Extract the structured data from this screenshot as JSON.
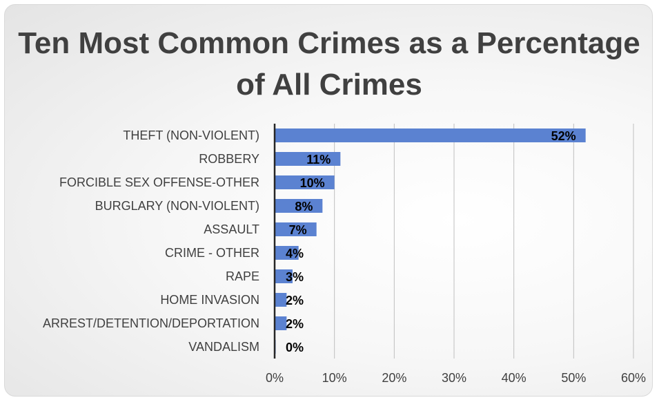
{
  "chart_data": {
    "type": "bar",
    "orientation": "horizontal",
    "title": "Ten Most Common Crimes as a Percentage of All Crimes",
    "categories": [
      "THEFT (NON-VIOLENT)",
      "ROBBERY",
      "FORCIBLE SEX OFFENSE-OTHER",
      "BURGLARY (NON-VIOLENT)",
      "ASSAULT",
      "CRIME - OTHER",
      "RAPE",
      "HOME INVASION",
      "ARREST/DETENTION/DEPORTATION",
      "VANDALISM"
    ],
    "values": [
      52,
      11,
      10,
      8,
      7,
      4,
      3,
      2,
      2,
      0
    ],
    "data_labels": [
      "52%",
      "11%",
      "10%",
      "8%",
      "7%",
      "4%",
      "3%",
      "2%",
      "2%",
      "0%"
    ],
    "xlim": [
      0,
      60
    ],
    "xticks": [
      0,
      10,
      20,
      30,
      40,
      50,
      60
    ],
    "xtick_labels": [
      "0%",
      "10%",
      "20%",
      "30%",
      "40%",
      "50%",
      "60%"
    ],
    "grid": "vertical",
    "bar_color": "#5b82d1"
  }
}
